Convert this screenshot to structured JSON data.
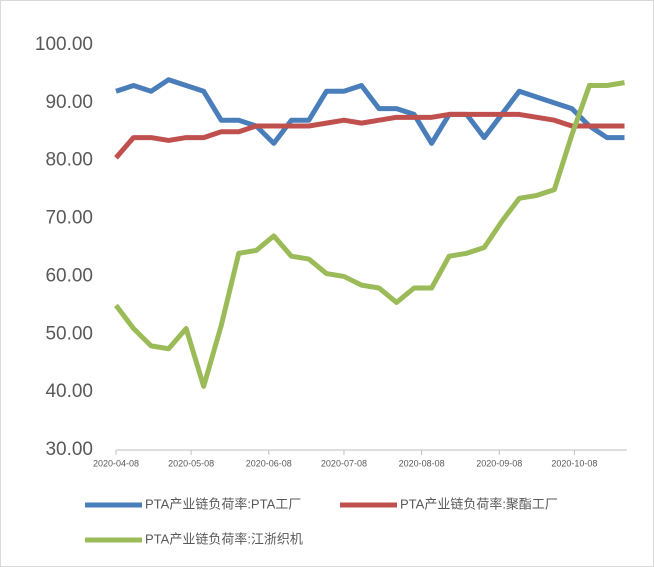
{
  "chart_data": {
    "type": "line",
    "x": [
      "2020-04-08",
      "2020-04-15",
      "2020-04-22",
      "2020-04-29",
      "2020-05-06",
      "2020-05-13",
      "2020-05-20",
      "2020-05-27",
      "2020-06-03",
      "2020-06-10",
      "2020-06-17",
      "2020-06-24",
      "2020-07-01",
      "2020-07-08",
      "2020-07-15",
      "2020-07-22",
      "2020-07-29",
      "2020-08-05",
      "2020-08-12",
      "2020-08-19",
      "2020-08-26",
      "2020-09-02",
      "2020-09-09",
      "2020-09-16",
      "2020-09-23",
      "2020-09-30",
      "2020-10-07",
      "2020-10-14",
      "2020-10-21",
      "2020-10-28"
    ],
    "series": [
      {
        "name": "PTA产业链负荷率:PTA工厂",
        "color": "#4a7ebb",
        "values": [
          92,
          93,
          92,
          94,
          93,
          92,
          87,
          87,
          86,
          83,
          87,
          87,
          92,
          92,
          93,
          89,
          89,
          88,
          83,
          88,
          88,
          84,
          88,
          92,
          91,
          90,
          89,
          86,
          84,
          84
        ]
      },
      {
        "name": "PTA产业链负荷率:聚酯工厂",
        "color": "#c0504d",
        "values": [
          80.5,
          84,
          84,
          83.5,
          84,
          84,
          85,
          85,
          86,
          86,
          86,
          86,
          86.5,
          87,
          86.5,
          87,
          87.5,
          87.5,
          87.5,
          88,
          88,
          88,
          88,
          88,
          87.5,
          87,
          86,
          86,
          86,
          86
        ]
      },
      {
        "name": "PTA产业链负荷率:江浙织机",
        "color": "#9bbb59",
        "values": [
          55,
          51,
          48,
          47.5,
          51,
          41,
          51.5,
          64,
          64.5,
          67,
          63.5,
          63,
          60.5,
          60,
          58.5,
          58,
          55.5,
          58,
          58,
          63.5,
          64,
          65,
          69.5,
          73.5,
          74,
          75,
          84.5,
          93,
          93,
          93.5
        ]
      }
    ],
    "xlim": [
      "2020-04-08",
      "2020-10-29"
    ],
    "xticks": [
      "2020-04-08",
      "2020-05-08",
      "2020-06-08",
      "2020-07-08",
      "2020-08-08",
      "2020-09-08",
      "2020-10-08"
    ],
    "ylim": [
      30,
      100
    ],
    "yticks": [
      {
        "value": 30,
        "label": "30.00"
      },
      {
        "value": 40,
        "label": "40.00"
      },
      {
        "value": 50,
        "label": "50.00"
      },
      {
        "value": 60,
        "label": "60.00"
      },
      {
        "value": 70,
        "label": "70.00"
      },
      {
        "value": 80,
        "label": "80.00"
      },
      {
        "value": 90,
        "label": "90.00"
      },
      {
        "value": 100,
        "label": "100.00"
      }
    ]
  }
}
